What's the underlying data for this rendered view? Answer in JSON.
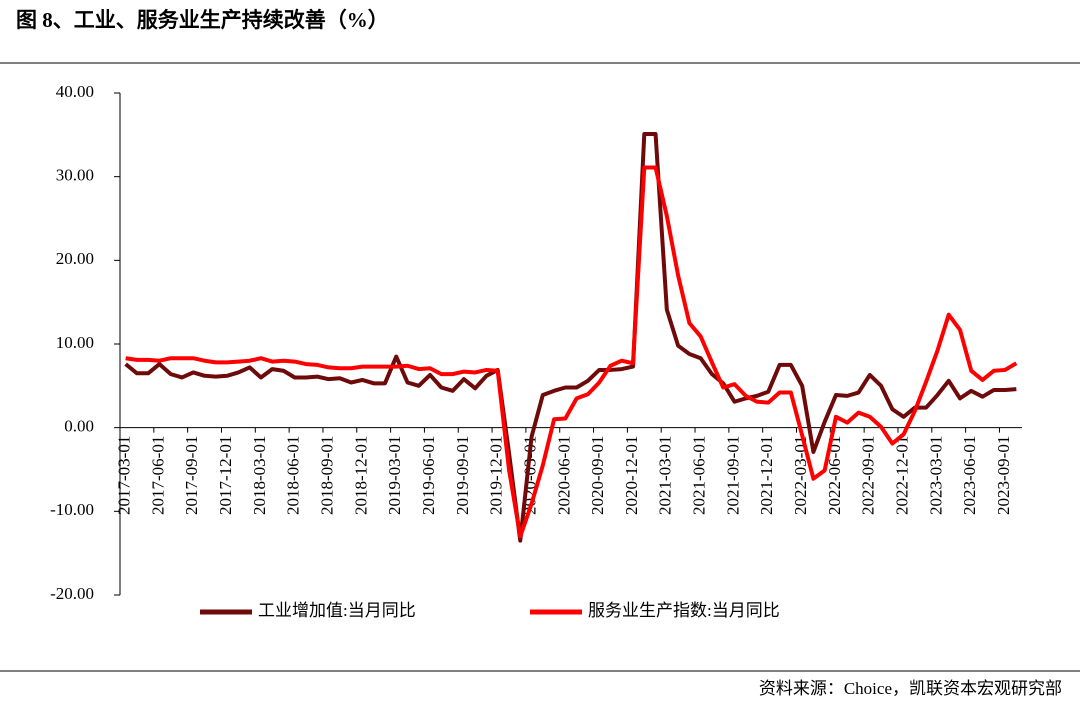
{
  "chart_data": {
    "type": "line",
    "title": "图 8、工业、服务业生产持续改善（%）",
    "source": "资料来源：Choice，凯联资本宏观研究部",
    "categories": [
      "2017-03-01",
      null,
      null,
      "2017-06-01",
      null,
      null,
      "2017-09-01",
      null,
      null,
      "2017-12-01",
      null,
      null,
      "2018-03-01",
      null,
      null,
      "2018-06-01",
      null,
      null,
      "2018-09-01",
      null,
      null,
      "2018-12-01",
      null,
      null,
      "2019-03-01",
      null,
      null,
      "2019-06-01",
      null,
      null,
      "2019-09-01",
      null,
      null,
      "2019-12-01",
      null,
      null,
      "2020-03-01",
      null,
      null,
      "2020-06-01",
      null,
      null,
      "2020-09-01",
      null,
      null,
      "2020-12-01",
      null,
      null,
      "2021-03-01",
      null,
      null,
      "2021-06-01",
      null,
      null,
      "2021-09-01",
      null,
      null,
      "2021-12-01",
      null,
      null,
      "2022-03-01",
      null,
      null,
      "2022-06-01",
      null,
      null,
      "2022-09-01",
      null,
      null,
      "2022-12-01",
      null,
      null,
      "2023-03-01",
      null,
      null,
      "2023-06-01",
      null,
      null,
      "2023-09-01",
      null
    ],
    "series": [
      {
        "name": "工业增加值:当月同比",
        "color": "#6e0a0a",
        "values": [
          7.6,
          6.5,
          6.5,
          7.6,
          6.4,
          6.0,
          6.6,
          6.2,
          6.1,
          6.2,
          6.6,
          7.2,
          6.0,
          7.0,
          6.8,
          6.0,
          6.0,
          6.1,
          5.8,
          5.9,
          5.4,
          5.7,
          5.3,
          5.3,
          8.5,
          5.4,
          5.0,
          6.3,
          4.8,
          4.4,
          5.8,
          4.7,
          6.2,
          6.9,
          -3.0,
          -13.5,
          -1.1,
          3.9,
          4.4,
          4.8,
          4.8,
          5.6,
          6.9,
          6.9,
          7.0,
          7.3,
          35.1,
          35.1,
          14.1,
          9.8,
          8.8,
          8.3,
          6.4,
          5.3,
          3.1,
          3.5,
          3.8,
          4.3,
          7.5,
          7.5,
          5.0,
          -2.9,
          0.7,
          3.9,
          3.8,
          4.2,
          6.3,
          5.0,
          2.2,
          1.3,
          2.4,
          2.4,
          3.9,
          5.6,
          3.5,
          4.4,
          3.7,
          4.5,
          4.5,
          4.6
        ]
      },
      {
        "name": "服务业生产指数:当月同比",
        "color": "#ff0000",
        "values": [
          8.3,
          8.1,
          8.1,
          8.0,
          8.3,
          8.3,
          8.3,
          8.0,
          7.8,
          7.8,
          7.9,
          8.0,
          8.3,
          7.9,
          8.0,
          7.9,
          7.6,
          7.5,
          7.2,
          7.1,
          7.1,
          7.3,
          7.3,
          7.3,
          7.3,
          7.4,
          7.0,
          7.1,
          6.4,
          6.4,
          6.7,
          6.6,
          6.9,
          6.8,
          -5.0,
          -13.0,
          -9.1,
          -4.5,
          1.0,
          1.1,
          3.5,
          4.0,
          5.4,
          7.4,
          8.0,
          7.7,
          31.1,
          31.1,
          25.3,
          18.2,
          12.5,
          10.9,
          7.8,
          4.8,
          5.2,
          3.8,
          3.1,
          3.0,
          4.2,
          4.2,
          -0.9,
          -6.1,
          -5.1,
          1.3,
          0.6,
          1.8,
          1.3,
          0.1,
          -1.9,
          -0.8,
          2.0,
          5.5,
          9.2,
          13.5,
          11.7,
          6.8,
          5.7,
          6.8,
          6.9,
          7.7
        ]
      }
    ],
    "ylim": [
      -20,
      40
    ],
    "yticks": [
      {
        "value": -20,
        "label": "-20.00"
      },
      {
        "value": -10,
        "label": "-10.00"
      },
      {
        "value": 0,
        "label": "0.00"
      },
      {
        "value": 10,
        "label": "10.00"
      },
      {
        "value": 20,
        "label": "20.00"
      },
      {
        "value": 30,
        "label": "30.00"
      },
      {
        "value": 40,
        "label": "40.00"
      }
    ],
    "grid": false
  }
}
